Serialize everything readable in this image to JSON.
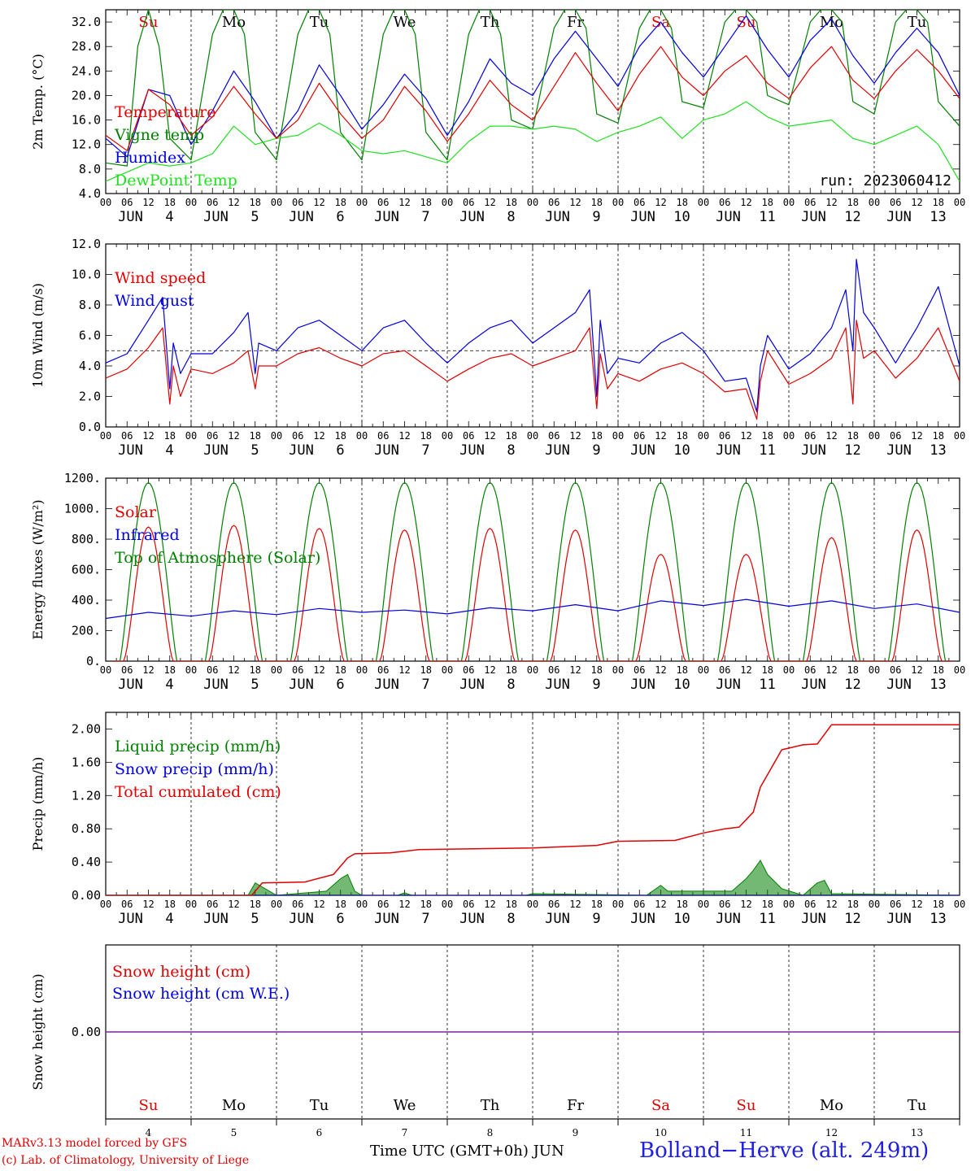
{
  "days": {
    "dates": [
      "4",
      "5",
      "6",
      "7",
      "8",
      "9",
      "10",
      "11",
      "12",
      "13"
    ],
    "weekdays": [
      "Su",
      "Mo",
      "Tu",
      "We",
      "Th",
      "Fr",
      "Sa",
      "Su",
      "Mo",
      "Tu"
    ],
    "weekend_flags": [
      true,
      false,
      false,
      false,
      false,
      false,
      true,
      true,
      false,
      false
    ],
    "month": "JUN",
    "hour_ticks": [
      "00",
      "06",
      "12",
      "18"
    ],
    "weekend_color": "#e00000",
    "weekday_color": "#000000"
  },
  "run_label": "run: 2023060412",
  "footer": {
    "credit_line1": "MARv3.13 model forced by GFS",
    "credit_line2": "(c) Lab. of Climatology, University of Liege",
    "xlabel": "Time UTC (GMT+0h) JUN",
    "station": "Bolland−Herve (alt. 249m)"
  },
  "chart_data": [
    {
      "type": "line",
      "title": "",
      "ylabel": "2m Temp. (°C)",
      "ylim": [
        4.0,
        34.0
      ],
      "yticks": [
        "4.0",
        "8.0",
        "12.0",
        "16.0",
        "20.0",
        "24.0",
        "28.0",
        "32.0"
      ],
      "x_unit": "hours since JUN 4 00 UTC",
      "legend": "top-left",
      "series": [
        {
          "name": "Temperature",
          "color": "#e00000",
          "x": [
            0,
            6,
            12,
            18,
            24,
            30,
            36,
            42,
            48,
            54,
            60,
            66,
            72,
            78,
            84,
            90,
            96,
            102,
            108,
            114,
            120,
            126,
            132,
            138,
            144,
            150,
            156,
            162,
            168,
            174,
            180,
            186,
            192,
            198,
            204,
            210,
            216,
            222,
            228,
            234,
            240
          ],
          "y": [
            13.5,
            11.0,
            21.0,
            18.5,
            13.5,
            16.5,
            21.5,
            17.0,
            13.0,
            16.0,
            22.0,
            17.0,
            13.0,
            16.0,
            21.5,
            17.5,
            12.5,
            17.0,
            22.5,
            18.5,
            16.0,
            21.5,
            27.0,
            22.0,
            17.5,
            23.5,
            28.0,
            23.0,
            20.0,
            24.0,
            26.5,
            22.0,
            19.5,
            24.5,
            28.0,
            22.5,
            19.5,
            24.0,
            27.5,
            24.0,
            19.5
          ]
        },
        {
          "name": "Vigne temp",
          "color": "#008000",
          "x": [
            0,
            6,
            9,
            12,
            15,
            18,
            24,
            30,
            33,
            36,
            39,
            42,
            48,
            54,
            57,
            60,
            63,
            66,
            72,
            78,
            81,
            84,
            87,
            90,
            96,
            102,
            105,
            108,
            111,
            114,
            120,
            126,
            129,
            132,
            135,
            138,
            144,
            150,
            153,
            156,
            159,
            162,
            168,
            174,
            177,
            180,
            183,
            186,
            192,
            198,
            201,
            204,
            207,
            210,
            216,
            222,
            225,
            228,
            231,
            234,
            240
          ],
          "y": [
            9.0,
            8.5,
            28.0,
            34.0,
            28.0,
            13.0,
            9.5,
            30.0,
            34.0,
            34.0,
            30.0,
            14.0,
            9.5,
            30.0,
            34.0,
            34.0,
            30.0,
            14.0,
            9.5,
            30.0,
            34.0,
            34.0,
            30.0,
            14.0,
            9.5,
            30.0,
            34.0,
            34.0,
            30.0,
            16.0,
            14.5,
            31.0,
            34.0,
            34.0,
            31.0,
            17.0,
            15.5,
            31.0,
            34.0,
            34.0,
            31.0,
            19.0,
            18.0,
            32.0,
            34.0,
            34.0,
            32.0,
            20.0,
            18.5,
            32.0,
            34.0,
            34.0,
            32.0,
            19.0,
            17.0,
            32.0,
            34.0,
            34.0,
            32.0,
            19.0,
            15.0
          ]
        },
        {
          "name": "Humidex",
          "color": "#0000e0",
          "x": [
            0,
            6,
            12,
            18,
            24,
            30,
            36,
            42,
            48,
            54,
            60,
            66,
            72,
            78,
            84,
            90,
            96,
            102,
            108,
            114,
            120,
            126,
            132,
            138,
            144,
            150,
            156,
            162,
            168,
            174,
            180,
            186,
            192,
            198,
            204,
            210,
            216,
            222,
            228,
            234,
            240
          ],
          "y": [
            13.0,
            10.0,
            21.0,
            20.0,
            12.0,
            17.5,
            24.0,
            19.0,
            13.0,
            17.5,
            25.0,
            20.0,
            14.5,
            18.5,
            23.5,
            19.5,
            13.5,
            19.0,
            26.0,
            22.0,
            20.0,
            26.0,
            30.5,
            26.0,
            21.5,
            28.0,
            32.0,
            27.0,
            23.0,
            28.0,
            33.0,
            27.5,
            23.0,
            29.0,
            32.5,
            26.5,
            22.0,
            27.0,
            31.0,
            27.0,
            20.0
          ]
        },
        {
          "name": "DewPoint Temp",
          "color": "#20e020",
          "x": [
            0,
            6,
            12,
            18,
            24,
            30,
            36,
            42,
            48,
            54,
            60,
            66,
            72,
            78,
            84,
            90,
            96,
            102,
            108,
            114,
            120,
            126,
            132,
            138,
            144,
            150,
            156,
            162,
            168,
            174,
            180,
            186,
            192,
            198,
            204,
            210,
            216,
            222,
            228,
            234,
            240
          ],
          "y": [
            6.0,
            7.5,
            9.0,
            8.5,
            9.0,
            10.5,
            15.0,
            12.0,
            13.0,
            13.5,
            15.5,
            13.5,
            11.0,
            10.5,
            11.0,
            10.0,
            9.0,
            12.5,
            15.0,
            15.0,
            14.5,
            15.0,
            14.5,
            12.5,
            14.0,
            15.0,
            16.5,
            13.0,
            16.0,
            17.0,
            19.0,
            16.5,
            15.0,
            15.5,
            16.0,
            13.0,
            12.0,
            13.5,
            15.0,
            12.0,
            6.0
          ]
        }
      ]
    },
    {
      "type": "line",
      "title": "",
      "ylabel": "10m Wind (m/s)",
      "ylim": [
        0.0,
        12.0
      ],
      "yticks": [
        "0.0",
        "2.0",
        "4.0",
        "6.0",
        "8.0",
        "10.0",
        "12.0"
      ],
      "reference_line": 5.0,
      "legend": "top-left",
      "series": [
        {
          "name": "Wind speed",
          "color": "#e00000",
          "x": [
            0,
            6,
            12,
            16,
            18,
            19,
            21,
            24,
            30,
            36,
            40,
            42,
            43,
            48,
            54,
            60,
            66,
            72,
            78,
            84,
            90,
            96,
            102,
            108,
            114,
            120,
            126,
            132,
            136,
            138,
            139,
            141,
            144,
            150,
            156,
            162,
            168,
            174,
            180,
            183,
            184,
            186,
            192,
            198,
            204,
            208,
            210,
            211,
            213,
            216,
            222,
            228,
            234,
            240
          ],
          "y": [
            3.2,
            3.8,
            5.2,
            6.5,
            1.5,
            4.0,
            2.0,
            3.8,
            3.5,
            4.2,
            5.0,
            2.5,
            4.0,
            4.0,
            4.8,
            5.2,
            4.5,
            4.0,
            4.8,
            5.0,
            4.0,
            3.0,
            3.8,
            4.5,
            4.8,
            4.0,
            4.5,
            5.0,
            6.5,
            1.2,
            4.8,
            2.5,
            3.5,
            3.0,
            3.8,
            4.2,
            3.5,
            2.3,
            2.5,
            0.5,
            3.0,
            5.0,
            2.8,
            3.5,
            4.5,
            6.5,
            1.5,
            7.0,
            4.5,
            5.0,
            3.2,
            4.5,
            6.5,
            3.0
          ]
        },
        {
          "name": "Wind gust",
          "color": "#0000e0",
          "x": [
            0,
            6,
            12,
            16,
            18,
            19,
            21,
            24,
            30,
            36,
            40,
            42,
            43,
            48,
            54,
            60,
            66,
            72,
            78,
            84,
            90,
            96,
            102,
            108,
            114,
            120,
            126,
            132,
            136,
            138,
            139,
            141,
            144,
            150,
            156,
            162,
            168,
            174,
            180,
            183,
            184,
            186,
            192,
            198,
            204,
            208,
            210,
            211,
            213,
            216,
            222,
            228,
            234,
            240
          ],
          "y": [
            4.2,
            4.8,
            7.0,
            8.5,
            2.5,
            5.5,
            3.5,
            4.8,
            4.8,
            6.2,
            7.5,
            3.5,
            5.5,
            5.0,
            6.5,
            7.0,
            6.0,
            5.0,
            6.5,
            7.0,
            5.5,
            4.2,
            5.5,
            6.5,
            7.0,
            5.5,
            6.5,
            7.5,
            9.0,
            2.0,
            7.0,
            3.5,
            4.5,
            4.2,
            5.5,
            6.2,
            5.0,
            3.0,
            3.2,
            1.0,
            4.0,
            6.0,
            3.8,
            4.8,
            6.5,
            9.0,
            5.0,
            11.0,
            7.5,
            6.5,
            4.2,
            6.5,
            9.2,
            4.0
          ]
        }
      ]
    },
    {
      "type": "line",
      "title": "",
      "ylabel": "Energy fluxes (W/m²)",
      "ylim": [
        0,
        1200
      ],
      "yticks": [
        "0.",
        "200.",
        "400.",
        "600.",
        "800.",
        "1000.",
        "1200."
      ],
      "legend": "top-left",
      "series": [
        {
          "name": "Solar",
          "color": "#e00000",
          "daily_peaks": [
            880,
            890,
            870,
            860,
            870,
            860,
            700,
            700,
            810,
            860
          ]
        },
        {
          "name": "Infrared",
          "color": "#0000e0",
          "x": [
            0,
            12,
            24,
            36,
            48,
            60,
            72,
            84,
            96,
            108,
            120,
            132,
            144,
            156,
            168,
            180,
            192,
            204,
            216,
            228,
            240
          ],
          "y": [
            280,
            320,
            295,
            330,
            305,
            345,
            320,
            335,
            310,
            350,
            330,
            370,
            330,
            395,
            365,
            405,
            360,
            395,
            345,
            375,
            320
          ]
        },
        {
          "name": "Top of Atmosphere (Solar)",
          "color": "#008000",
          "daily_peak": 1170
        }
      ]
    },
    {
      "type": "area",
      "title": "",
      "ylabel": "Precip (mm/h)",
      "ylim": [
        0.0,
        2.2
      ],
      "yticks": [
        "0.00",
        "0.40",
        "0.80",
        "1.20",
        "1.60",
        "2.00"
      ],
      "legend": "top-left",
      "series": [
        {
          "name": "Liquid precip (mm/h)",
          "color": "#008000",
          "x": [
            0,
            40,
            42,
            44,
            46,
            48,
            62,
            66,
            68,
            70,
            72,
            82,
            84,
            86,
            118,
            120,
            152,
            156,
            158,
            162,
            176,
            180,
            182,
            184,
            186,
            190,
            196,
            200,
            202,
            204,
            240
          ],
          "y": [
            0,
            0,
            0.15,
            0.1,
            0.05,
            0,
            0.05,
            0.2,
            0.25,
            0.05,
            0,
            0,
            0.03,
            0,
            0,
            0.02,
            0,
            0.12,
            0.05,
            0.05,
            0.05,
            0.2,
            0.3,
            0.42,
            0.25,
            0.08,
            0,
            0.15,
            0.18,
            0.02,
            0
          ]
        },
        {
          "name": "Snow precip (mm/h)",
          "color": "#0000e0",
          "x": [
            0,
            240
          ],
          "y": [
            0,
            0
          ]
        },
        {
          "name": "Total cumulated (cm)",
          "color": "#e00000",
          "x": [
            0,
            41,
            44,
            56,
            64,
            68,
            70,
            80,
            88,
            120,
            138,
            144,
            160,
            168,
            174,
            178,
            182,
            184,
            190,
            196,
            200,
            204,
            240
          ],
          "y": [
            0,
            0,
            0.15,
            0.16,
            0.25,
            0.45,
            0.5,
            0.51,
            0.55,
            0.57,
            0.6,
            0.65,
            0.66,
            0.75,
            0.8,
            0.82,
            1.0,
            1.3,
            1.75,
            1.81,
            1.82,
            2.05,
            2.05
          ]
        }
      ]
    },
    {
      "type": "line",
      "title": "",
      "ylabel": "Snow height (cm)",
      "ytick_label": "0.00",
      "legend": "top-left",
      "series": [
        {
          "name": "Snow height (cm)",
          "color": "#e00000",
          "x": [
            0,
            240
          ],
          "y": [
            0,
            0
          ]
        },
        {
          "name": "Snow height (cm W.E.)",
          "color": "#0000e0",
          "x": [
            0,
            240
          ],
          "y": [
            0,
            0
          ]
        }
      ]
    }
  ]
}
